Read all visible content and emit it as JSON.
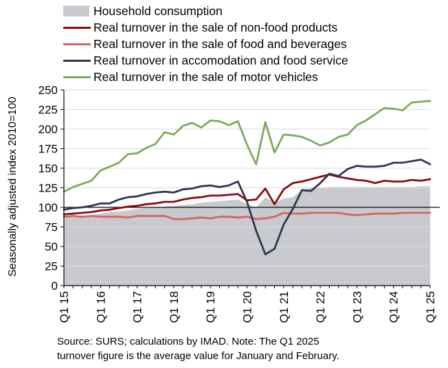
{
  "chart_data": {
    "type": "line",
    "ylabel": "Seasonally adjusted index 2010=100",
    "ylim": [
      0,
      250
    ],
    "yticks": [
      0,
      25,
      50,
      75,
      100,
      125,
      150,
      175,
      200,
      225,
      250
    ],
    "reference_line": 100,
    "x": [
      "Q1 15",
      "Q2 15",
      "Q3 15",
      "Q4 15",
      "Q1 16",
      "Q2 16",
      "Q3 16",
      "Q4 16",
      "Q1 17",
      "Q2 17",
      "Q3 17",
      "Q4 17",
      "Q1 18",
      "Q2 18",
      "Q3 18",
      "Q4 18",
      "Q1 19",
      "Q2 19",
      "Q3 19",
      "Q4 19",
      "Q1 20",
      "Q2 20",
      "Q3 20",
      "Q4 20",
      "Q1 21",
      "Q2 21",
      "Q3 21",
      "Q4 21",
      "Q1 22",
      "Q2 22",
      "Q3 22",
      "Q4 22",
      "Q1 23",
      "Q2 23",
      "Q3 23",
      "Q4 23",
      "Q1 24",
      "Q2 24",
      "Q3 24",
      "Q4 24",
      "Q1 25"
    ],
    "x_tick_labels": [
      "Q1 15",
      "Q1 16",
      "Q1 17",
      "Q1 18",
      "Q1 19",
      "Q1 20",
      "Q1 21",
      "Q1 22",
      "Q1 23",
      "Q1 24",
      "Q1 25"
    ],
    "series": [
      {
        "name": "Household consumption",
        "kind": "area",
        "color": "#c8cacf",
        "values": [
          88,
          88,
          89,
          90,
          92,
          94,
          95,
          96,
          98,
          99,
          100,
          101,
          102,
          103,
          104,
          106,
          107,
          108,
          109,
          110,
          104,
          100,
          113,
          106,
          111,
          113,
          122,
          125,
          125,
          126,
          126,
          126,
          126,
          126,
          126,
          126,
          126,
          126,
          126,
          127,
          127
        ]
      },
      {
        "name": "Real turnover in the sale of non-food products",
        "kind": "line",
        "color": "#8b0a0f",
        "values": [
          91,
          92,
          93,
          94,
          96,
          97,
          99,
          101,
          102,
          104,
          105,
          107,
          107,
          110,
          112,
          113,
          115,
          115,
          116,
          117,
          109,
          110,
          124,
          104,
          123,
          131,
          133,
          136,
          139,
          142,
          139,
          137,
          135,
          134,
          131,
          134,
          133,
          133,
          135,
          134,
          136
        ]
      },
      {
        "name": "Real turnover in the sale of food and beverages",
        "kind": "line",
        "color": "#d9625e",
        "values": [
          88,
          89,
          88,
          89,
          88,
          88,
          88,
          87,
          89,
          89,
          89,
          89,
          85,
          85,
          86,
          87,
          86,
          88,
          88,
          87,
          88,
          85,
          86,
          88,
          93,
          92,
          92,
          93,
          93,
          93,
          93,
          91,
          90,
          91,
          92,
          92,
          92,
          93,
          93,
          93,
          93
        ]
      },
      {
        "name": "Real turnover in accomodation and food service",
        "kind": "line",
        "color": "#2e3650",
        "values": [
          97,
          99,
          100,
          102,
          105,
          105,
          110,
          113,
          114,
          117,
          119,
          120,
          119,
          123,
          124,
          127,
          128,
          126,
          128,
          133,
          107,
          70,
          40,
          47,
          78,
          98,
          122,
          121,
          131,
          143,
          140,
          149,
          153,
          152,
          152,
          153,
          157,
          157,
          159,
          161,
          155
        ]
      },
      {
        "name": "Real turnover in the sale of motor vehicles",
        "kind": "line",
        "color": "#7ea95c",
        "values": [
          120,
          126,
          130,
          134,
          147,
          152,
          157,
          168,
          169,
          176,
          181,
          196,
          193,
          204,
          208,
          202,
          211,
          210,
          205,
          210,
          180,
          155,
          209,
          170,
          193,
          192,
          190,
          185,
          179,
          183,
          190,
          193,
          205,
          211,
          219,
          227,
          226,
          224,
          234,
          235,
          236
        ]
      }
    ]
  },
  "note_lines": [
    "Source: SURS; calculations by IMAD. Note: The Q1 2025",
    "turnover figure is the average value for January and February."
  ]
}
